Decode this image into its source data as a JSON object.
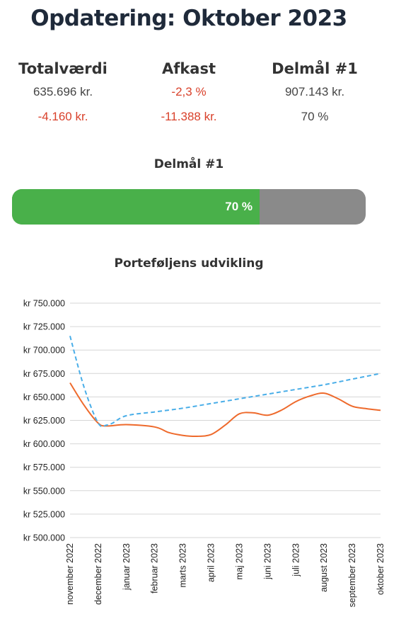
{
  "header": {
    "title": "Opdatering: Oktober 2023"
  },
  "stats": [
    {
      "label": "Totalværdi",
      "line1": "635.696 kr.",
      "line2": "-4.160 kr."
    },
    {
      "label": "Afkast",
      "line1": "-2,3 %",
      "line2": "-11.388 kr."
    },
    {
      "label": "Delmål #1",
      "line1": "907.143 kr.",
      "line2": "70 %"
    }
  ],
  "goal": {
    "title": "Delmål #1",
    "progress_label": "70 %",
    "progress_fraction": 0.7
  },
  "colors": {
    "positive_bar": "#49b04a",
    "remaining_bar": "#8a8a8a",
    "negative_text": "#d9412b",
    "actual_line": "#ee6a2c",
    "target_line": "#4aaee8"
  },
  "chart_data": {
    "type": "line",
    "title": "Porteføljens udvikling",
    "x": [
      "november 2022",
      "december 2022",
      "januar 2023",
      "februar 2023",
      "marts 2023",
      "april 2023",
      "maj 2023",
      "juni 2023",
      "juli 2023",
      "august 2023",
      "september 2023",
      "oktober 2023"
    ],
    "y_ticks": [
      "kr 500.000",
      "kr 525.000",
      "kr 550.000",
      "kr 575.000",
      "kr 600.000",
      "kr 625.000",
      "kr 650.000",
      "kr 675.000",
      "kr 700.000",
      "kr 725.000",
      "kr 750.000"
    ],
    "ylim": [
      500000,
      750000
    ],
    "grid": true,
    "series": [
      {
        "style": "solid",
        "color": "#ee6a2c",
        "points": [
          [
            0,
            665000
          ],
          [
            0.5,
            641000
          ],
          [
            1,
            622000
          ],
          [
            1.3,
            619000
          ],
          [
            2,
            620500
          ],
          [
            3,
            618000
          ],
          [
            3.5,
            612000
          ],
          [
            4,
            609000
          ],
          [
            4.5,
            608000
          ],
          [
            5,
            610000
          ],
          [
            5.5,
            620000
          ],
          [
            6,
            632000
          ],
          [
            6.5,
            633000
          ],
          [
            7,
            630500
          ],
          [
            7.5,
            636000
          ],
          [
            8,
            645000
          ],
          [
            8.5,
            651000
          ],
          [
            9,
            654000
          ],
          [
            9.5,
            648000
          ],
          [
            10,
            640000
          ],
          [
            10.5,
            637500
          ],
          [
            11,
            635696
          ]
        ]
      },
      {
        "style": "dashed",
        "color": "#4aaee8",
        "points": [
          [
            0,
            715000
          ],
          [
            0.5,
            660000
          ],
          [
            1,
            622000
          ],
          [
            1.3,
            620000
          ],
          [
            1.5,
            622000
          ],
          [
            2,
            630000
          ],
          [
            3,
            634000
          ],
          [
            4,
            638000
          ],
          [
            5,
            643000
          ],
          [
            6,
            648000
          ],
          [
            7,
            653000
          ],
          [
            8,
            658000
          ],
          [
            9,
            663000
          ],
          [
            10,
            669000
          ],
          [
            11,
            675000
          ]
        ]
      }
    ]
  }
}
